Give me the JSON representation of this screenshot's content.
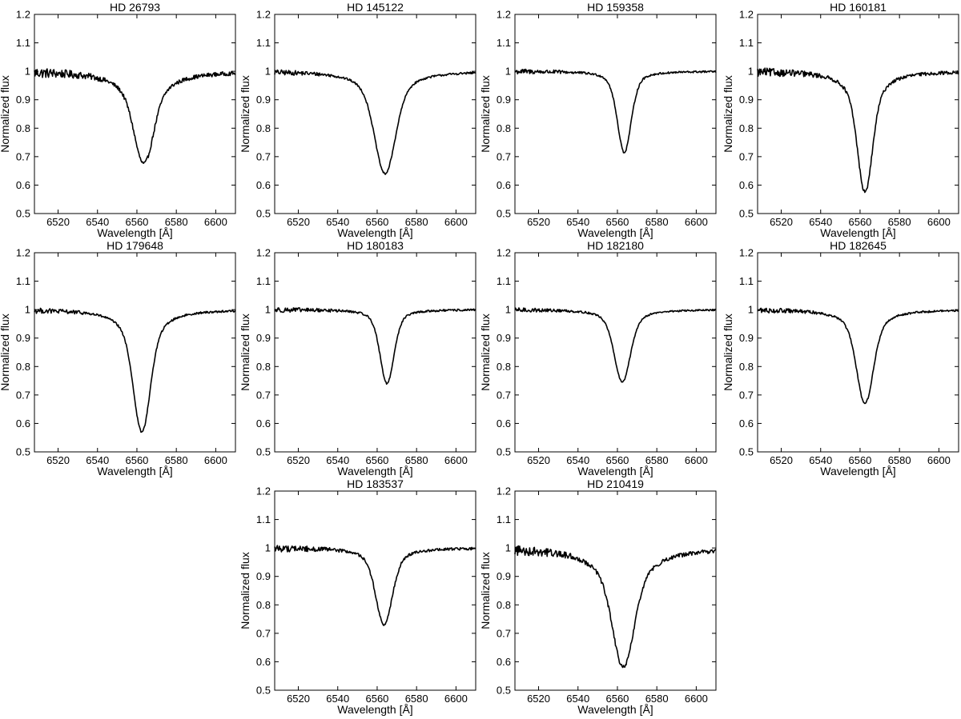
{
  "chart_data": [
    {
      "type": "line",
      "title": "HD 26793",
      "xlabel": "Wavelength [Å]",
      "ylabel": "Normalized flux",
      "xlim": [
        6508,
        6610
      ],
      "ylim": [
        0.5,
        1.2
      ],
      "xticks": [
        6520,
        6540,
        6560,
        6580,
        6600
      ],
      "yticks": [
        0.5,
        0.6,
        0.7,
        0.8,
        0.9,
        1,
        1.1,
        1.2
      ],
      "line": {
        "depth": 0.675,
        "center": 6563.5,
        "core_width": 4.5,
        "wing_width": 18,
        "noise": 0.012
      }
    },
    {
      "type": "line",
      "title": "HD 145122",
      "xlabel": "Wavelength [Å]",
      "ylabel": "Normalized flux",
      "xlim": [
        6508,
        6610
      ],
      "ylim": [
        0.5,
        1.2
      ],
      "xticks": [
        6520,
        6540,
        6560,
        6580,
        6600
      ],
      "yticks": [
        0.5,
        0.6,
        0.7,
        0.8,
        0.9,
        1,
        1.1,
        1.2
      ],
      "line": {
        "depth": 0.64,
        "center": 6564,
        "core_width": 5,
        "wing_width": 15,
        "noise": 0.006
      }
    },
    {
      "type": "line",
      "title": "HD 159358",
      "xlabel": "Wavelength [Å]",
      "ylabel": "Normalized flux",
      "xlim": [
        6508,
        6610
      ],
      "ylim": [
        0.5,
        1.2
      ],
      "xticks": [
        6520,
        6540,
        6560,
        6580,
        6600
      ],
      "yticks": [
        0.5,
        0.6,
        0.7,
        0.8,
        0.9,
        1,
        1.1,
        1.2
      ],
      "line": {
        "depth": 0.715,
        "center": 6563.5,
        "core_width": 3.5,
        "wing_width": 8,
        "noise": 0.006
      }
    },
    {
      "type": "line",
      "title": "HD 160181",
      "xlabel": "Wavelength [Å]",
      "ylabel": "Normalized flux",
      "xlim": [
        6508,
        6610
      ],
      "ylim": [
        0.5,
        1.2
      ],
      "xticks": [
        6520,
        6540,
        6560,
        6580,
        6600
      ],
      "yticks": [
        0.5,
        0.6,
        0.7,
        0.8,
        0.9,
        1,
        1.1,
        1.2
      ],
      "line": {
        "depth": 0.575,
        "center": 6562.5,
        "core_width": 3.5,
        "wing_width": 12,
        "noise": 0.01
      }
    },
    {
      "type": "line",
      "title": "HD 179648",
      "xlabel": "Wavelength [Å]",
      "ylabel": "Normalized flux",
      "xlim": [
        6508,
        6610
      ],
      "ylim": [
        0.5,
        1.2
      ],
      "xticks": [
        6520,
        6540,
        6560,
        6580,
        6600
      ],
      "yticks": [
        0.5,
        0.6,
        0.7,
        0.8,
        0.9,
        1,
        1.1,
        1.2
      ],
      "line": {
        "depth": 0.57,
        "center": 6562.5,
        "core_width": 4,
        "wing_width": 13,
        "noise": 0.006
      }
    },
    {
      "type": "line",
      "title": "HD 180183",
      "xlabel": "Wavelength [Å]",
      "ylabel": "Normalized flux",
      "xlim": [
        6508,
        6610
      ],
      "ylim": [
        0.5,
        1.2
      ],
      "xticks": [
        6520,
        6540,
        6560,
        6580,
        6600
      ],
      "yticks": [
        0.5,
        0.6,
        0.7,
        0.8,
        0.9,
        1,
        1.1,
        1.2
      ],
      "line": {
        "depth": 0.74,
        "center": 6565,
        "core_width": 3.5,
        "wing_width": 8,
        "noise": 0.006
      }
    },
    {
      "type": "line",
      "title": "HD 182180",
      "xlabel": "Wavelength [Å]",
      "ylabel": "Normalized flux",
      "xlim": [
        6508,
        6610
      ],
      "ylim": [
        0.5,
        1.2
      ],
      "xticks": [
        6520,
        6540,
        6560,
        6580,
        6600
      ],
      "yticks": [
        0.5,
        0.6,
        0.7,
        0.8,
        0.9,
        1,
        1.1,
        1.2
      ],
      "line": {
        "depth": 0.745,
        "center": 6562.5,
        "core_width": 4,
        "wing_width": 10,
        "noise": 0.005
      }
    },
    {
      "type": "line",
      "title": "HD 182645",
      "xlabel": "Wavelength [Å]",
      "ylabel": "Normalized flux",
      "xlim": [
        6508,
        6610
      ],
      "ylim": [
        0.5,
        1.2
      ],
      "xticks": [
        6520,
        6540,
        6560,
        6580,
        6600
      ],
      "yticks": [
        0.5,
        0.6,
        0.7,
        0.8,
        0.9,
        1,
        1.1,
        1.2
      ],
      "line": {
        "depth": 0.67,
        "center": 6562.5,
        "core_width": 4,
        "wing_width": 12,
        "noise": 0.006
      }
    },
    {
      "type": "line",
      "title": "HD 183537",
      "xlabel": "Wavelength [Å]",
      "ylabel": "Normalized flux",
      "xlim": [
        6508,
        6610
      ],
      "ylim": [
        0.5,
        1.2
      ],
      "xticks": [
        6520,
        6540,
        6560,
        6580,
        6600
      ],
      "yticks": [
        0.5,
        0.6,
        0.7,
        0.8,
        0.9,
        1,
        1.1,
        1.2
      ],
      "line": {
        "depth": 0.73,
        "center": 6563.5,
        "core_width": 4,
        "wing_width": 11,
        "noise": 0.008
      }
    },
    {
      "type": "line",
      "title": "HD 210419",
      "xlabel": "Wavelength [Å]",
      "ylabel": "Normalized flux",
      "xlim": [
        6508,
        6610
      ],
      "ylim": [
        0.5,
        1.2
      ],
      "xticks": [
        6520,
        6540,
        6560,
        6580,
        6600
      ],
      "yticks": [
        0.5,
        0.6,
        0.7,
        0.8,
        0.9,
        1,
        1.1,
        1.2
      ],
      "line": {
        "depth": 0.58,
        "center": 6563,
        "core_width": 5,
        "wing_width": 20,
        "noise": 0.012
      }
    }
  ]
}
